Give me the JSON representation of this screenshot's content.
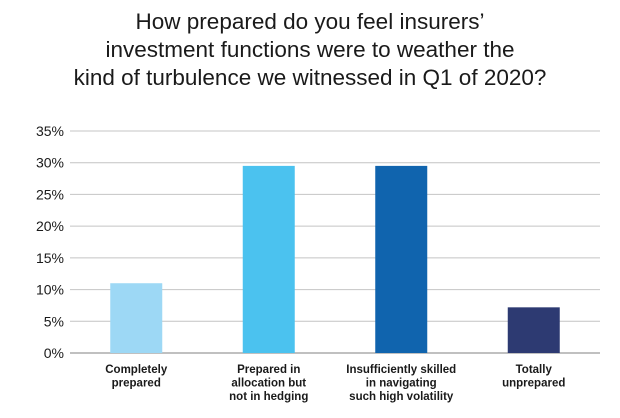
{
  "chart_data": {
    "type": "bar",
    "title_lines": [
      "How prepared do you feel insurers’",
      "investment functions were to weather the",
      "kind of turbulence we witnessed in Q1 of 2020?"
    ],
    "categories": [
      [
        "Completely",
        "prepared"
      ],
      [
        "Prepared in",
        "allocation but",
        "not in hedging"
      ],
      [
        "Insufficiently skilled",
        "in navigating",
        "such high volatility"
      ],
      [
        "Totally",
        "unprepared"
      ]
    ],
    "values": [
      11,
      29.5,
      29.5,
      7.2
    ],
    "bar_colors": [
      "#9dd8f5",
      "#4bc2ef",
      "#1064ae",
      "#2d3a72"
    ],
    "ylim": [
      0,
      35
    ],
    "yticks": [
      0,
      5,
      10,
      15,
      20,
      25,
      30,
      35
    ],
    "ytick_labels": [
      "0%",
      "5%",
      "10%",
      "15%",
      "20%",
      "25%",
      "30%",
      "35%"
    ],
    "grid": true,
    "xlabel": "",
    "ylabel": ""
  }
}
